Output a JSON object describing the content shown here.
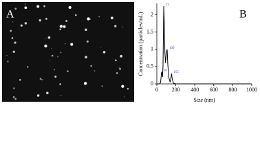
{
  "panel_labels": {
    "a": "A",
    "b": "B"
  },
  "chart_data": {
    "type": "line",
    "xlabel": "Size (nm)",
    "ylabel": "Concentration (particles/mL)",
    "x": [
      0,
      30,
      40,
      50,
      55,
      60,
      65,
      70,
      73,
      78,
      85,
      92,
      100,
      109,
      115,
      125,
      140,
      150,
      155,
      162,
      175,
      200,
      300,
      1000
    ],
    "series": [
      {
        "name": "Concentration",
        "color": "#000000",
        "values": [
          0,
          0,
          0.05,
          0.35,
          0.3,
          0.2,
          0.5,
          1.6,
          2.25,
          1.8,
          0.9,
          0.6,
          0.9,
          1.0,
          0.6,
          0.2,
          0.05,
          0.2,
          0.3,
          0.15,
          0.02,
          0,
          0,
          0
        ]
      }
    ],
    "annotations": [
      {
        "text": "73",
        "x": 73,
        "y": 2.25
      },
      {
        "text": "109",
        "x": 109,
        "y": 1.0
      },
      {
        "text": "50",
        "x": 50,
        "y": 0.35
      },
      {
        "text": "155",
        "x": 155,
        "y": 0.3
      }
    ],
    "annotation_color": "#4a4ad0",
    "xlim": [
      0,
      1000
    ],
    "xticks": [
      0,
      200,
      400,
      600,
      800,
      1000
    ],
    "ylim": [
      0,
      2.33
    ],
    "yticks": [
      0,
      0.5,
      1,
      1.5,
      2
    ]
  }
}
